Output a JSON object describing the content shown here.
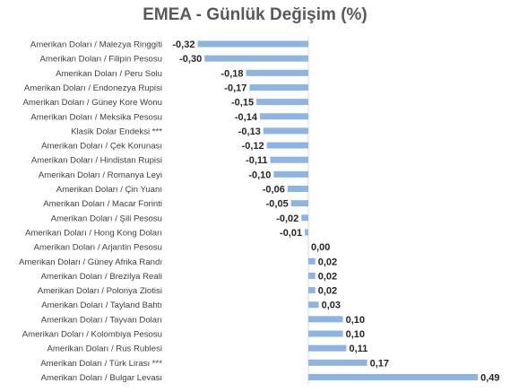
{
  "chart_data": {
    "type": "bar",
    "orientation": "horizontal",
    "title": "EMEA - Günlük Değişim (%)",
    "xlabel": "",
    "ylabel": "",
    "bar_color": "#8eb4e3",
    "grid": false,
    "legend": "none",
    "xlim": [
      -0.5,
      0.5
    ],
    "categories": [
      "Amerikan Doları / Malezya Ringgiti",
      "Amerikan Doları / Filipin Pesosu",
      "Amerikan Doları / Peru Solu",
      "Amerikan Doları / Endonezya Rupisi",
      "Amerikan Doları / Güney Kore Wonu",
      "Amerikan Doları / Meksika Pesosu",
      "Klasik Dolar Endeksi ***",
      "Amerikan Doları / Çek Korunası",
      "Amerikan Doları / Hindistan Rupisi",
      "Amerikan Doları / Romanya Leyi",
      "Amerikan Doları / Çin Yuanı",
      "Amerikan Doları / Macar Forinti",
      "Amerikan Doları / Şili Pesosu",
      "Amerikan Doları / Hong Kong Doları",
      "Amerikan Doları / Arjantin Pesosu",
      "Amerikan Doları / Güney Afrika Randı",
      "Amerikan Doları / Brezilya Reali",
      "Amerikan Doları / Polonya Zlotisi",
      "Amerikan Doları / Tayland Bahtı",
      "Amerikan Doları / Tayvan Doları",
      "Amerikan Doları / Kolombiya Pesosu",
      "Amerikan Doları / Rus Rublesi",
      "Amerikan Doları / Türk Lirası ***",
      "Amerikan Doları / Bulgar Levası"
    ],
    "values": [
      -0.32,
      -0.3,
      -0.18,
      -0.17,
      -0.15,
      -0.14,
      -0.13,
      -0.12,
      -0.11,
      -0.1,
      -0.06,
      -0.05,
      -0.02,
      -0.01,
      0.0,
      0.02,
      0.02,
      0.02,
      0.03,
      0.1,
      0.1,
      0.11,
      0.17,
      0.49
    ],
    "value_labels": [
      "-0,32",
      "-0,30",
      "-0,18",
      "-0,17",
      "-0,15",
      "-0,14",
      "-0,13",
      "-0,12",
      "-0,11",
      "-0,10",
      "-0,06",
      "-0,05",
      "-0,02",
      "-0,01",
      "0,00",
      "0,02",
      "0,02",
      "0,02",
      "0,03",
      "0,10",
      "0,10",
      "0,11",
      "0,17",
      "0,49"
    ]
  }
}
